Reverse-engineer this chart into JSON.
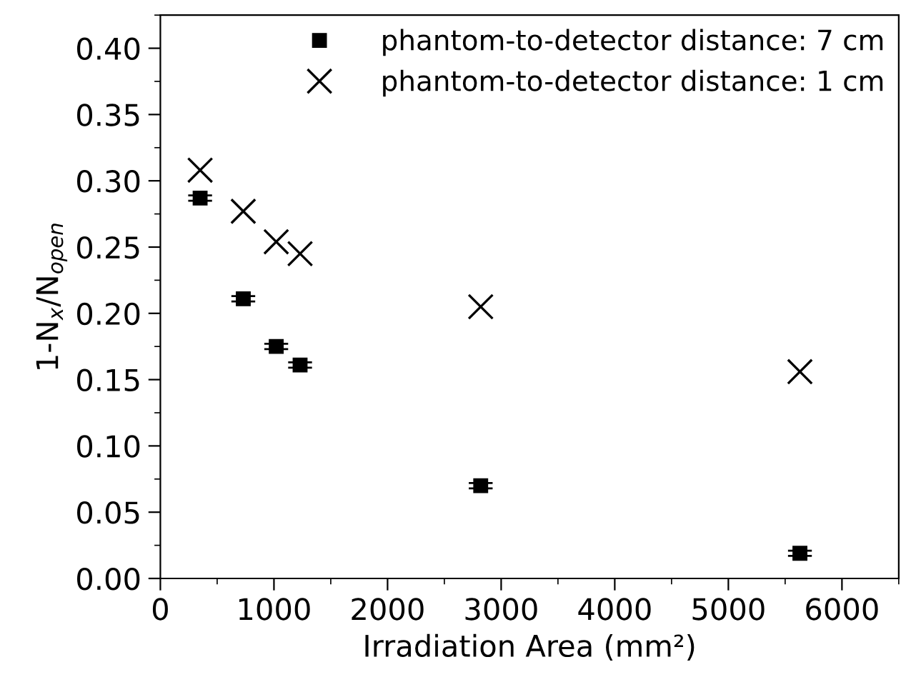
{
  "chart_data": {
    "type": "scatter",
    "xlabel": "Irradiation Area (mm²)",
    "ylabel": "1-N$_{x}$/N$_{open}$",
    "x": [
      350,
      730,
      1020,
      1230,
      2820,
      5630
    ],
    "series": [
      {
        "name": "phantom-to-detector distance: 7 cm",
        "color": "#000000",
        "marker": "square",
        "values": [
          0.287,
          0.211,
          0.175,
          0.161,
          0.07,
          0.019
        ],
        "errors": [
          0.002,
          0.002,
          0.002,
          0.002,
          0.002,
          0.002
        ]
      },
      {
        "name": "phantom-to-detector distance: 1 cm",
        "color": "#000000",
        "marker": "cross",
        "values": [
          0.308,
          0.277,
          0.254,
          0.245,
          0.205,
          0.156
        ]
      }
    ],
    "xlim": [
      0,
      6500
    ],
    "xticks": [
      0,
      1000,
      2000,
      3000,
      4000,
      5000,
      6000
    ],
    "ylim": [
      0,
      0.425
    ],
    "yticks": [
      {
        "value": 0,
        "label": "0.00"
      },
      {
        "value": 0.05,
        "label": "0.05"
      },
      {
        "value": 0.1,
        "label": "0.10"
      },
      {
        "value": 0.15,
        "label": "0.15"
      },
      {
        "value": 0.2,
        "label": "0.20"
      },
      {
        "value": 0.25,
        "label": "0.25"
      },
      {
        "value": 0.3,
        "label": "0.30"
      },
      {
        "value": 0.35,
        "label": "0.35"
      },
      {
        "value": 0.4,
        "label": "0.40"
      }
    ],
    "grid": false,
    "legend": "top right"
  }
}
